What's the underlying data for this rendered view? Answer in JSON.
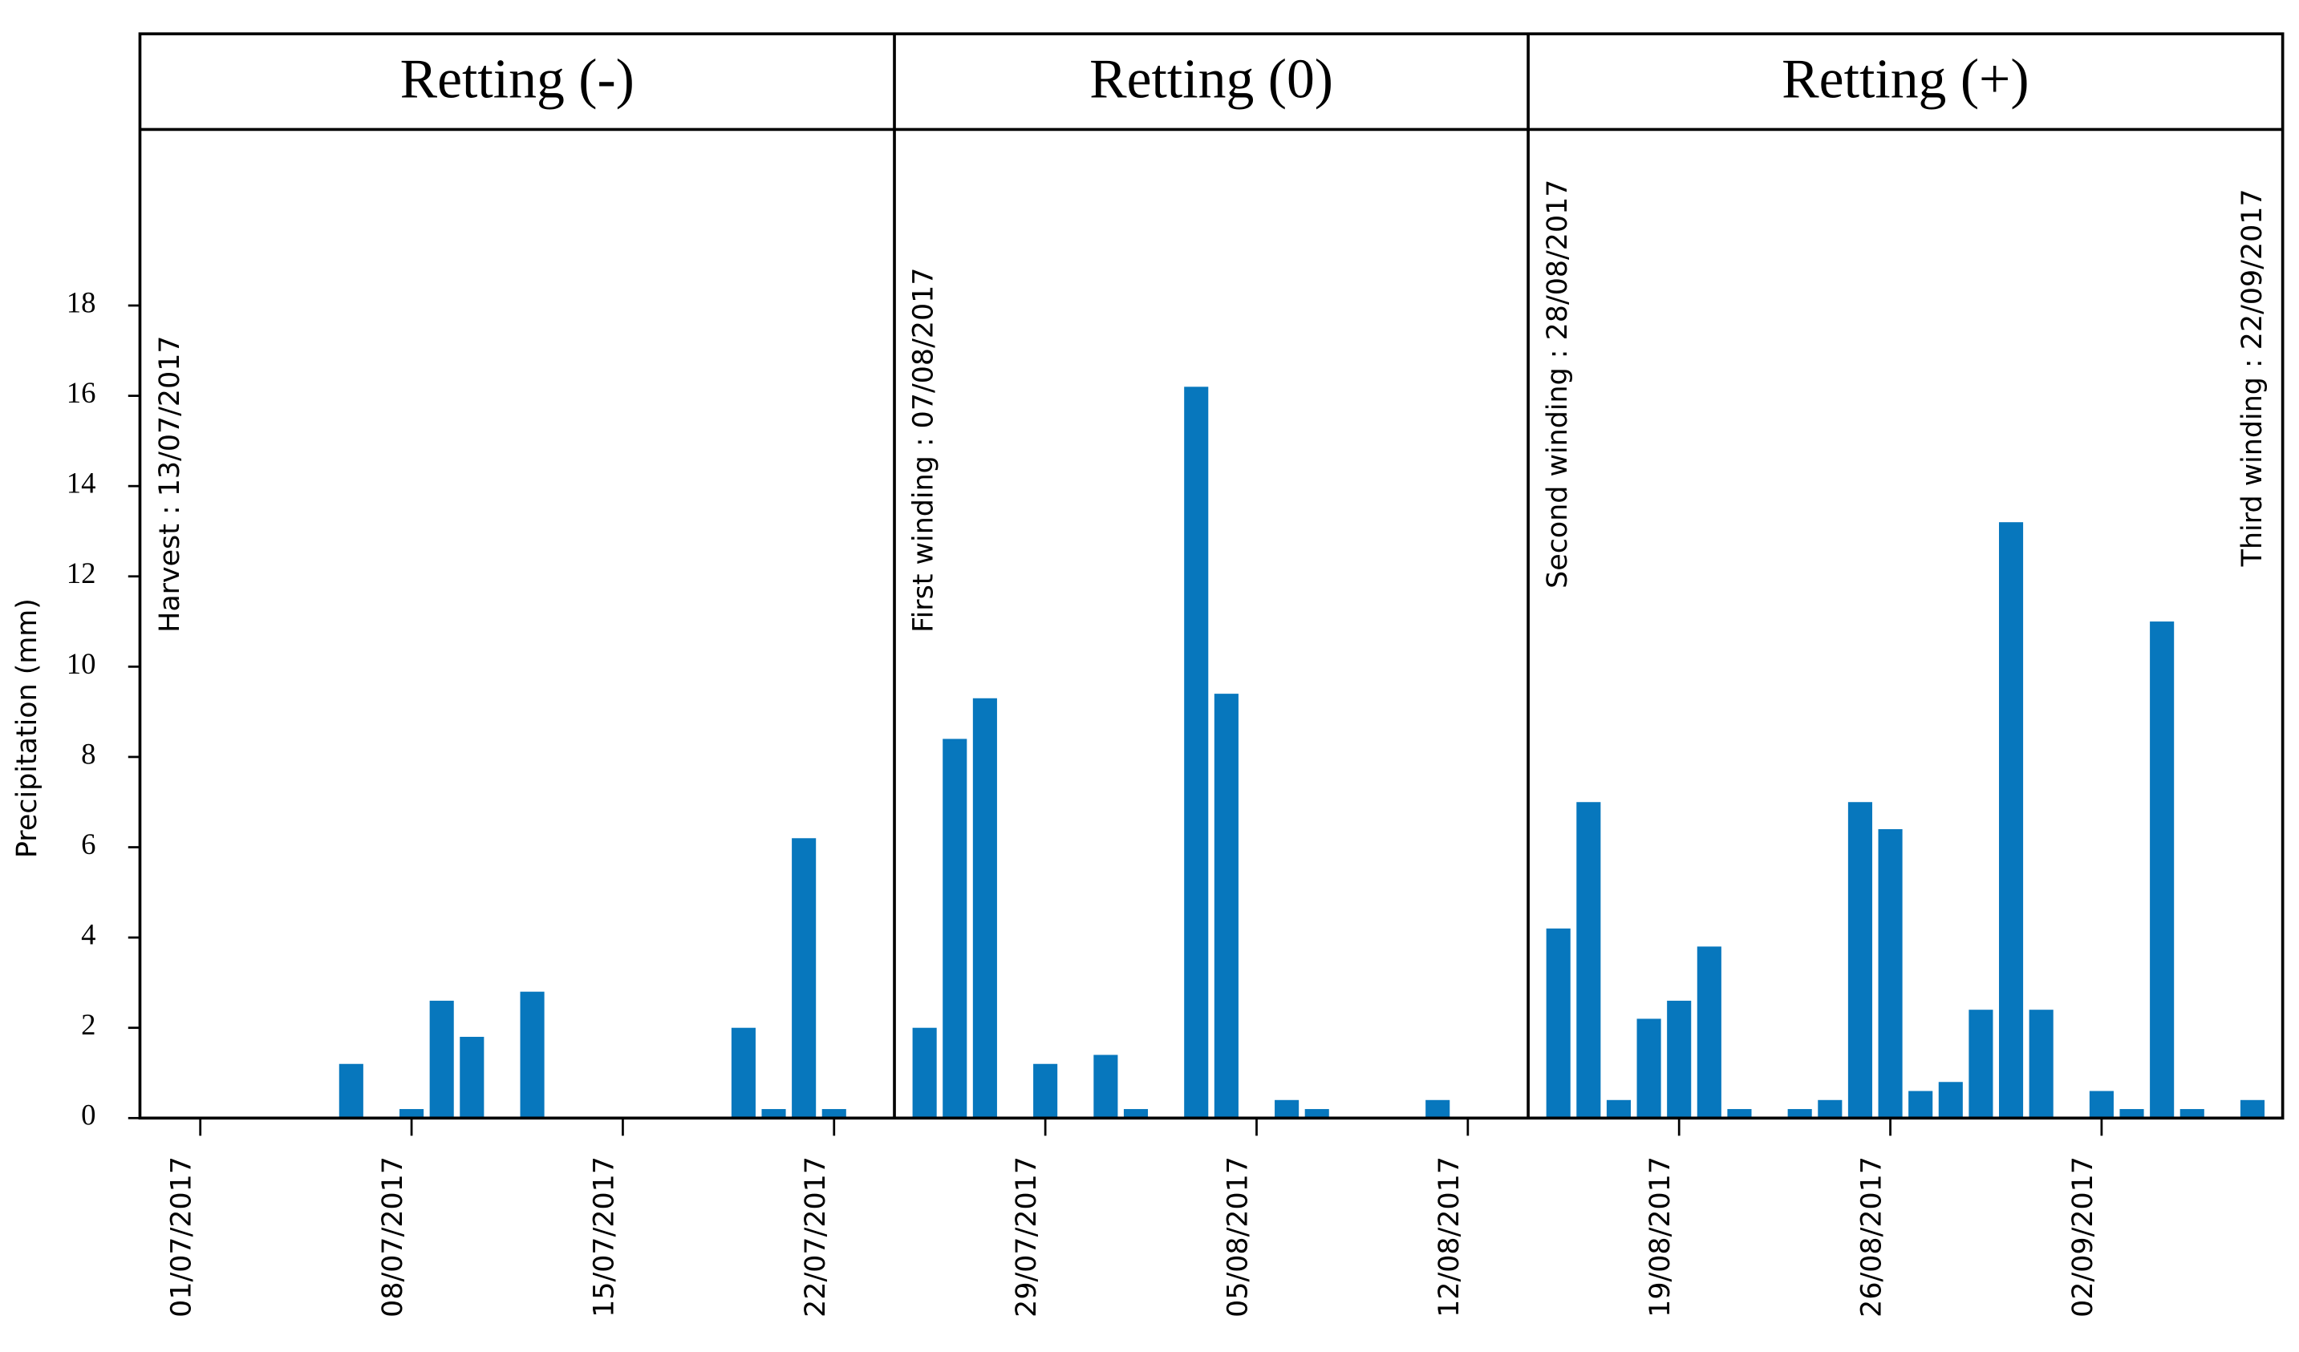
{
  "chart_data": {
    "type": "bar",
    "y_label": "Precipitation (mm)",
    "color": "#0777bd",
    "grid": false,
    "x": [
      "06/07/2017",
      "08/07/2017",
      "09/07/2017",
      "10/07/2017",
      "12/07/2017",
      "19/07/2017",
      "20/07/2017",
      "21/07/2017",
      "22/07/2017",
      "25/07/2017",
      "26/07/2017",
      "27/07/2017",
      "29/07/2017",
      "31/07/2017",
      "01/08/2017",
      "03/08/2017",
      "04/08/2017",
      "06/08/2017",
      "07/08/2017",
      "11/08/2017",
      "15/08/2017",
      "16/08/2017",
      "17/08/2017",
      "18/08/2017",
      "19/08/2017",
      "20/08/2017",
      "21/08/2017",
      "23/08/2017",
      "24/08/2017",
      "25/08/2017",
      "26/08/2017",
      "27/08/2017",
      "28/08/2017",
      "29/08/2017",
      "30/08/2017",
      "31/08/2017",
      "02/09/2017",
      "03/09/2017",
      "04/09/2017",
      "05/09/2017",
      "07/09/2017"
    ],
    "values": [
      1.2,
      0.2,
      2.6,
      1.8,
      2.8,
      2.0,
      0.2,
      6.2,
      0.2,
      2.0,
      8.4,
      9.3,
      1.2,
      1.4,
      0.2,
      16.2,
      9.4,
      0.4,
      0.2,
      0.4,
      4.2,
      7.0,
      0.4,
      2.2,
      2.6,
      3.8,
      0.2,
      0.2,
      0.4,
      7.0,
      6.4,
      0.6,
      0.8,
      2.4,
      13.2,
      2.4,
      0.6,
      0.2,
      11.0,
      0.2,
      0.4
    ],
    "xlim": [
      "29/06/2017",
      "08/09/2017"
    ],
    "xticks": [
      "01/07/2017",
      "08/07/2017",
      "15/07/2017",
      "22/07/2017",
      "29/07/2017",
      "05/08/2017",
      "12/08/2017",
      "19/08/2017",
      "26/08/2017",
      "02/09/2017"
    ],
    "ylim": [
      0,
      21.9
    ],
    "yticks": [
      0,
      2,
      4,
      6,
      8,
      10,
      12,
      14,
      16,
      18
    ],
    "panels": [
      {
        "title": "Retting (-)",
        "range": [
          "29/06/2017",
          "24/07/2017"
        ]
      },
      {
        "title": "Retting (0)",
        "range": [
          "24/07/2017",
          "14/08/2017"
        ]
      },
      {
        "title": "Retting (+)",
        "range": [
          "14/08/2017",
          "08/09/2017"
        ]
      }
    ],
    "annotations": [
      "Harvest : 13/07/2017",
      "First winding : 07/08/2017",
      "Second winding : 28/08/2017",
      "Third winding : 22/09/2017"
    ]
  }
}
